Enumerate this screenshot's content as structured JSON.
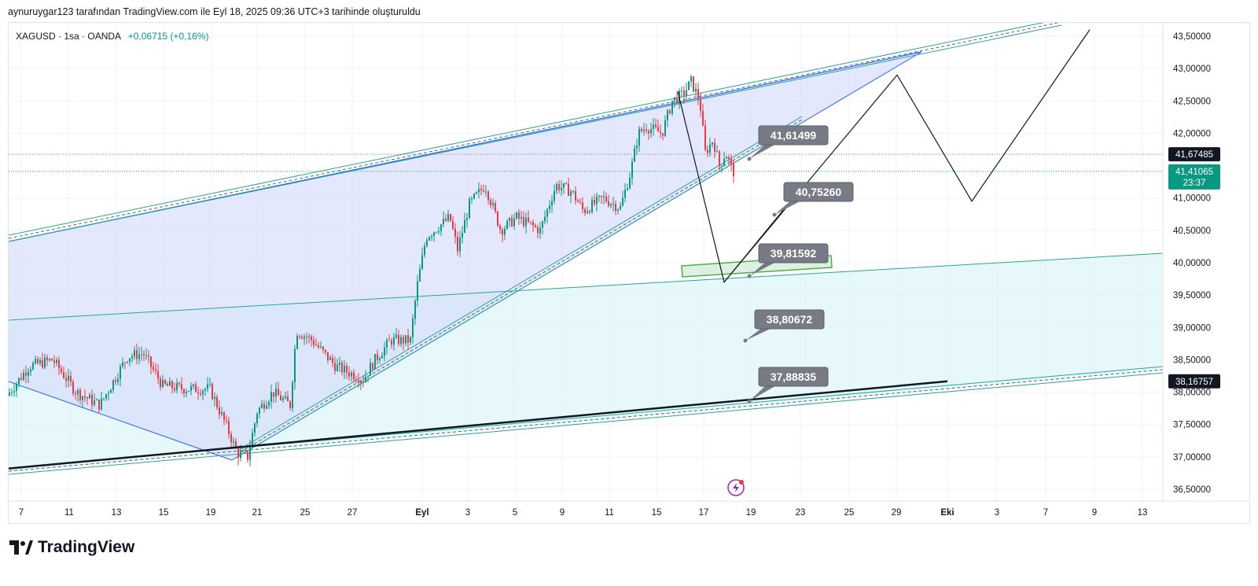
{
  "header": {
    "attribution": "aynuruygar123 tarafından TradingView.com ile Eyl 18, 2025 09:36 UTC+3 tarihinde oluşturuldu"
  },
  "symbol": {
    "name": "XAGUSD · 1sa · OANDA",
    "change": "+0,06715 (+0,16%)"
  },
  "logo": {
    "text": "TradingView"
  },
  "colors": {
    "up": "#089981",
    "down": "#f23645",
    "channel": "#26a69a",
    "wedge_line": "#2962ff",
    "wedge_fill": "#d6dcfa",
    "low_zone_fill": "#dff5f8",
    "callout_bg": "#787b86",
    "target_box": "#4caf50"
  },
  "chart_data": {
    "type": "candlestick",
    "y_axis": {
      "ticks": [
        "43,50000",
        "43,00000",
        "42,50000",
        "42,00000",
        "41,00000",
        "40,50000",
        "40,00000",
        "39,50000",
        "39,00000",
        "38,50000",
        "38,00000",
        "37,50000",
        "37,00000",
        "36,50000"
      ],
      "range": [
        36.3,
        43.6
      ]
    },
    "x_axis": {
      "ticks": [
        "7",
        "11",
        "13",
        "15",
        "19",
        "21",
        "25",
        "27",
        "Eyl",
        "3",
        "5",
        "9",
        "11",
        "15",
        "17",
        "19",
        "23",
        "25",
        "29",
        "Eki",
        "3",
        "7",
        "9",
        "13"
      ]
    },
    "price_labels": [
      {
        "label": "41,67485",
        "value": 41.67485,
        "style": "dark"
      },
      {
        "label": "41,41065",
        "sub": "23:37",
        "value": 41.41065,
        "style": "green"
      },
      {
        "label": "38,16757",
        "value": 38.16757,
        "style": "black"
      }
    ],
    "callouts": [
      {
        "label": "41,61499",
        "value": 41.61499
      },
      {
        "label": "40,75260",
        "value": 40.7526
      },
      {
        "label": "39,81592",
        "value": 39.81592
      },
      {
        "label": "38,80672",
        "value": 38.80672
      },
      {
        "label": "37,88835",
        "value": 37.88835
      }
    ],
    "projection_path": [
      {
        "date": "Eyl 15",
        "price": 42.65
      },
      {
        "date": "Eyl 18",
        "price": 39.7
      },
      {
        "date": "Eyl 29",
        "price": 42.9
      },
      {
        "date": "Eki 3",
        "price": 40.95
      },
      {
        "date": "Eki 7",
        "price": 43.6
      }
    ],
    "candles_hint": "Hourly XAGUSD from ~Aug 7 to Sep 18, 2025: ~38.0 start, low ~37.0 on Aug 20, breakout to ~40.8 Sep 1, high ~42.95 Sep 16, last close 41.41."
  }
}
